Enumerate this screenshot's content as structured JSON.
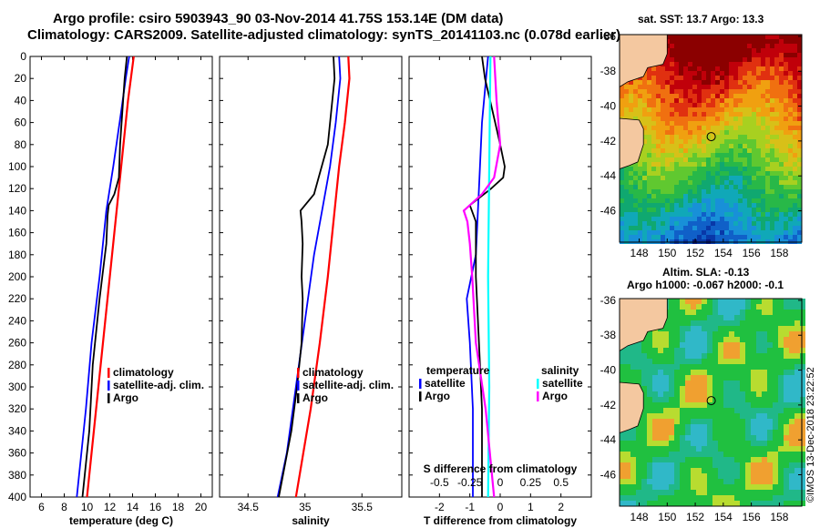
{
  "title": {
    "line1": "Argo profile: csiro 5903943_90 03-Nov-2014 41.75S 153.14E (DM data)",
    "line2": "Climatology: CARS2009. Satellite-adjusted climatology: synTS_20141103.nc (0.078d earlier)"
  },
  "sst_map": {
    "title": "sat. SST: 13.7 Argo: 13.3",
    "xticks": [
      148,
      150,
      152,
      154,
      156,
      158
    ],
    "yticks": [
      -36,
      -38,
      -40,
      -42,
      -44,
      -46
    ],
    "lon_range": [
      146.6,
      159.6
    ],
    "lat_range": [
      -47.8,
      -35.9
    ],
    "argo_position": {
      "lon": 153.14,
      "lat": -41.75
    }
  },
  "sla_map": {
    "title_line1": "Altim. SLA: -0.13",
    "title_line2": "Argo h1000: -0.067 h2000: -0.1",
    "xticks": [
      148,
      150,
      152,
      154,
      156,
      158
    ],
    "yticks": [
      -36,
      -38,
      -40,
      -42,
      -44,
      -46
    ],
    "lon_range": [
      146.6,
      159.6
    ],
    "lat_range": [
      -47.8,
      -35.9
    ],
    "argo_position": {
      "lon": 153.14,
      "lat": -41.75
    }
  },
  "credit": "©IMOS 13-Dec-2018 23:22:52",
  "colors": {
    "climatology": "#ff0000",
    "satellite": "#0000ff",
    "argo": "#000000",
    "s_satellite": "#00ffff",
    "s_argo": "#ff00ff"
  },
  "chart_data": [
    {
      "type": "line",
      "title": "",
      "xlabel": "temperature (deg C)",
      "ylabel": "",
      "xlim": [
        5,
        21
      ],
      "ylim": [
        400,
        0
      ],
      "xticks": [
        6,
        8,
        10,
        12,
        14,
        16,
        18,
        20
      ],
      "yticks": [
        0,
        20,
        40,
        60,
        80,
        100,
        120,
        140,
        160,
        180,
        200,
        220,
        240,
        260,
        280,
        300,
        320,
        340,
        360,
        380,
        400
      ],
      "legend": [
        "climatology",
        "satellite-adj. clim.",
        "Argo"
      ],
      "series": [
        {
          "name": "climatology",
          "color": "#ff0000",
          "depth": [
            0,
            40,
            100,
            160,
            220,
            280,
            340,
            400
          ],
          "values": [
            14.1,
            13.6,
            13.0,
            12.4,
            11.8,
            11.2,
            10.6,
            10.0
          ]
        },
        {
          "name": "satellite-adj. clim.",
          "color": "#0000ff",
          "depth": [
            0,
            20,
            50,
            100,
            140,
            200,
            260,
            320,
            400
          ],
          "values": [
            13.7,
            13.4,
            13.0,
            12.3,
            11.7,
            11.1,
            10.4,
            9.9,
            9.1
          ]
        },
        {
          "name": "Argo",
          "color": "#000000",
          "depth": [
            0,
            20,
            50,
            80,
            110,
            125,
            135,
            145,
            170,
            220,
            280,
            340,
            400
          ],
          "values": [
            13.5,
            13.3,
            13.1,
            12.9,
            12.8,
            12.4,
            11.9,
            11.8,
            11.7,
            11.1,
            10.5,
            10.2,
            9.6
          ]
        }
      ]
    },
    {
      "type": "line",
      "title": "",
      "xlabel": "salinity",
      "ylabel": "",
      "xlim": [
        34.25,
        35.85
      ],
      "ylim": [
        400,
        0
      ],
      "xticks": [
        34.5,
        35,
        35.5
      ],
      "legend": [
        "climatology",
        "satellite-adj. clim.",
        "Argo"
      ],
      "series": [
        {
          "name": "climatology",
          "color": "#ff0000",
          "depth": [
            0,
            20,
            60,
            100,
            150,
            200,
            260,
            320,
            400
          ],
          "values": [
            35.38,
            35.39,
            35.35,
            35.3,
            35.25,
            35.2,
            35.13,
            35.05,
            34.92
          ]
        },
        {
          "name": "satellite-adj. clim.",
          "color": "#0000ff",
          "depth": [
            0,
            20,
            60,
            100,
            140,
            180,
            240,
            300,
            360,
            400
          ],
          "values": [
            35.3,
            35.31,
            35.27,
            35.22,
            35.15,
            35.08,
            35.0,
            34.92,
            34.84,
            34.76
          ]
        },
        {
          "name": "Argo",
          "color": "#000000",
          "depth": [
            0,
            20,
            50,
            80,
            110,
            125,
            140,
            150,
            170,
            200,
            220,
            260,
            300,
            340,
            400
          ],
          "values": [
            35.25,
            35.26,
            35.23,
            35.2,
            35.12,
            35.08,
            34.96,
            34.97,
            34.98,
            34.97,
            34.98,
            34.97,
            34.93,
            34.88,
            34.77
          ]
        }
      ]
    },
    {
      "type": "line",
      "title": "",
      "xlabel": "T difference from climatology",
      "x2label": "S difference from climatology",
      "xlim": [
        -3,
        3
      ],
      "x2lim": [
        -0.75,
        0.75
      ],
      "ylim": [
        400,
        0
      ],
      "xticks": [
        -2,
        -1,
        0,
        1,
        2
      ],
      "x2ticks": [
        -0.5,
        -0.25,
        0,
        0.25,
        0.5
      ],
      "legend_temperature_title": "temperature",
      "legend_salinity_title": "salinity",
      "legend_temperature": [
        "satellite",
        "Argo"
      ],
      "legend_salinity": [
        "satellite",
        "Argo"
      ],
      "series": [
        {
          "name": "T satellite",
          "color": "#0000ff",
          "depth": [
            0,
            60,
            120,
            180,
            220,
            260,
            320,
            400
          ],
          "values": [
            -0.4,
            -0.6,
            -0.7,
            -0.8,
            -1.1,
            -1.0,
            -0.9,
            -0.9
          ]
        },
        {
          "name": "T Argo",
          "color": "#000000",
          "depth": [
            0,
            20,
            50,
            80,
            100,
            110,
            120,
            135,
            150,
            200,
            260,
            320,
            400
          ],
          "values": [
            -0.6,
            -0.5,
            -0.25,
            0.0,
            0.15,
            0.1,
            -0.3,
            -1.0,
            -0.8,
            -0.8,
            -0.7,
            -0.6,
            -0.6
          ]
        },
        {
          "name": "S satellite",
          "color": "#00ffff",
          "depth": [
            0,
            100,
            200,
            300,
            400
          ],
          "values": [
            -0.08,
            -0.09,
            -0.1,
            -0.09,
            -0.1
          ]
        },
        {
          "name": "S Argo",
          "color": "#ff00ff",
          "depth": [
            0,
            40,
            80,
            110,
            125,
            140,
            150,
            170,
            200,
            260,
            320,
            400
          ],
          "values": [
            -0.05,
            -0.03,
            0.0,
            -0.05,
            -0.15,
            -0.3,
            -0.27,
            -0.25,
            -0.23,
            -0.2,
            -0.12,
            -0.05
          ]
        }
      ]
    }
  ]
}
